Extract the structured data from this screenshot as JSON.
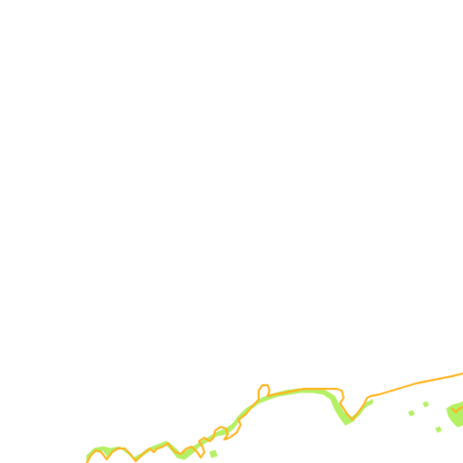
{
  "map": {
    "background_color": "#ffffff",
    "boundary_color": "#ffb41e",
    "vegetation_color": "#b4f064",
    "layers": [
      "vegetation",
      "boundary"
    ]
  }
}
